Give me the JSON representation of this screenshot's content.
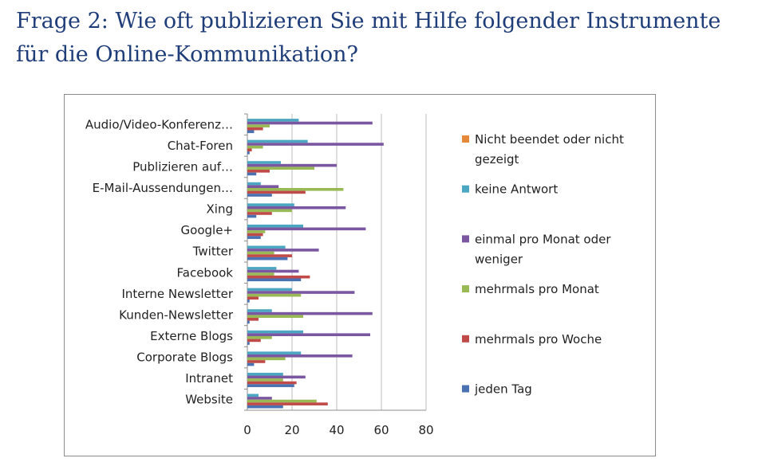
{
  "page": {
    "title_line1": "Frage 2: Wie oft publizieren Sie mit Hilfe folgender Instrumente",
    "title_line2": "für die Online-Kommunikation?"
  },
  "chart_data": {
    "type": "bar",
    "orientation": "horizontal",
    "categories": [
      "Audio/Video-Konferenz…",
      "Chat-Foren",
      "Publizieren auf…",
      "E-Mail-Aussendungen…",
      "Xing",
      "Google+",
      "Twitter",
      "Facebook",
      "Interne Newsletter",
      "Kunden-Newsletter",
      "Externe Blogs",
      "Corporate Blogs",
      "Intranet",
      "Website"
    ],
    "series": [
      {
        "name": "Nicht beendet oder nicht gezeigt",
        "color": "#e6883a",
        "values": [
          0,
          0,
          0,
          0,
          0,
          0,
          0,
          0,
          0,
          0,
          0,
          0,
          0,
          0
        ]
      },
      {
        "name": "keine Antwort",
        "color": "#4ba6c2",
        "values": [
          23,
          27,
          15,
          6,
          21,
          25,
          17,
          13,
          20,
          11,
          25,
          24,
          16,
          5
        ]
      },
      {
        "name": "einmal pro Monat oder weniger",
        "color": "#7a57a0",
        "values": [
          56,
          61,
          40,
          14,
          44,
          53,
          32,
          23,
          48,
          56,
          55,
          47,
          26,
          11
        ]
      },
      {
        "name": "mehrmals pro Monat",
        "color": "#98b954",
        "values": [
          10,
          7,
          30,
          43,
          20,
          8,
          12,
          12,
          24,
          25,
          11,
          17,
          16,
          31
        ]
      },
      {
        "name": "mehrmals pro Woche",
        "color": "#bf4a48",
        "values": [
          7,
          2,
          10,
          26,
          11,
          7,
          20,
          28,
          5,
          5,
          6,
          8,
          22,
          36
        ]
      },
      {
        "name": "jeden Tag",
        "color": "#4a72b2",
        "values": [
          3,
          1,
          4,
          11,
          4,
          6,
          18,
          24,
          1,
          1,
          1,
          3,
          21,
          16
        ]
      }
    ],
    "xlim": [
      0,
      80
    ],
    "xticks": [
      "0",
      "20",
      "40",
      "60",
      "80"
    ],
    "legend_position": "right",
    "legend_lines": [
      [
        "Nicht beendet oder nicht",
        "gezeigt"
      ],
      [
        "keine Antwort"
      ],
      [
        "einmal pro Monat oder",
        "weniger"
      ],
      [
        "mehrmals pro Monat"
      ],
      [
        "mehrmals pro Woche"
      ],
      [
        "jeden Tag"
      ]
    ]
  }
}
